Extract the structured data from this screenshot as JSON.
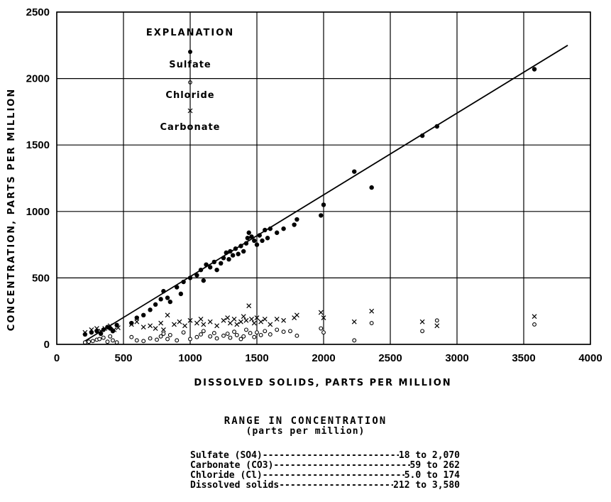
{
  "chart_data": {
    "type": "scatter",
    "xlabel": "DISSOLVED SOLIDS, PARTS PER MILLION",
    "ylabel": "CONCENTRATION, PARTS PER MILLION",
    "xlim": [
      0,
      4000
    ],
    "ylim": [
      0,
      2500
    ],
    "xticks": [
      0,
      500,
      1000,
      1500,
      2000,
      2500,
      3000,
      3500,
      4000
    ],
    "yticks": [
      0,
      500,
      1000,
      1500,
      2000,
      2500
    ],
    "grid": true,
    "legend": {
      "title": "EXPLANATION",
      "placement": "top-left",
      "entries": [
        {
          "label": "Sulfate",
          "marker": "filled-circle"
        },
        {
          "label": "Chloride",
          "marker": "open-circle"
        },
        {
          "label": "Carbonate",
          "marker": "x"
        }
      ]
    },
    "trend_line": {
      "series": "Sulfate",
      "x": [
        200,
        3830
      ],
      "y": [
        18,
        2250
      ]
    },
    "series": [
      {
        "name": "Sulfate",
        "marker": "filled-circle",
        "points": [
          [
            212,
            75
          ],
          [
            260,
            90
          ],
          [
            300,
            100
          ],
          [
            330,
            80
          ],
          [
            350,
            110
          ],
          [
            380,
            130
          ],
          [
            400,
            120
          ],
          [
            420,
            100
          ],
          [
            450,
            145
          ],
          [
            560,
            160
          ],
          [
            600,
            200
          ],
          [
            650,
            220
          ],
          [
            700,
            260
          ],
          [
            740,
            300
          ],
          [
            780,
            340
          ],
          [
            800,
            400
          ],
          [
            830,
            350
          ],
          [
            850,
            320
          ],
          [
            900,
            430
          ],
          [
            930,
            380
          ],
          [
            950,
            470
          ],
          [
            1000,
            500
          ],
          [
            1050,
            520
          ],
          [
            1080,
            560
          ],
          [
            1100,
            480
          ],
          [
            1120,
            600
          ],
          [
            1150,
            580
          ],
          [
            1180,
            620
          ],
          [
            1200,
            560
          ],
          [
            1230,
            610
          ],
          [
            1250,
            650
          ],
          [
            1270,
            690
          ],
          [
            1290,
            640
          ],
          [
            1300,
            700
          ],
          [
            1320,
            670
          ],
          [
            1340,
            720
          ],
          [
            1360,
            680
          ],
          [
            1380,
            740
          ],
          [
            1400,
            700
          ],
          [
            1420,
            760
          ],
          [
            1430,
            800
          ],
          [
            1440,
            840
          ],
          [
            1460,
            810
          ],
          [
            1480,
            780
          ],
          [
            1500,
            750
          ],
          [
            1520,
            820
          ],
          [
            1540,
            780
          ],
          [
            1560,
            860
          ],
          [
            1580,
            800
          ],
          [
            1600,
            870
          ],
          [
            1650,
            840
          ],
          [
            1700,
            870
          ],
          [
            1780,
            900
          ],
          [
            1800,
            940
          ],
          [
            1980,
            970
          ],
          [
            2000,
            1050
          ],
          [
            2230,
            1300
          ],
          [
            2360,
            1180
          ],
          [
            2740,
            1570
          ],
          [
            2850,
            1640
          ],
          [
            3580,
            2070
          ]
        ]
      },
      {
        "name": "Chloride",
        "marker": "open-circle",
        "points": [
          [
            212,
            15
          ],
          [
            240,
            20
          ],
          [
            270,
            25
          ],
          [
            300,
            35
          ],
          [
            320,
            40
          ],
          [
            350,
            50
          ],
          [
            380,
            20
          ],
          [
            400,
            60
          ],
          [
            420,
            30
          ],
          [
            450,
            15
          ],
          [
            560,
            55
          ],
          [
            600,
            30
          ],
          [
            650,
            25
          ],
          [
            700,
            45
          ],
          [
            750,
            35
          ],
          [
            780,
            60
          ],
          [
            800,
            80
          ],
          [
            830,
            40
          ],
          [
            850,
            70
          ],
          [
            900,
            30
          ],
          [
            950,
            90
          ],
          [
            1000,
            40
          ],
          [
            1050,
            55
          ],
          [
            1080,
            75
          ],
          [
            1100,
            100
          ],
          [
            1150,
            60
          ],
          [
            1180,
            85
          ],
          [
            1200,
            45
          ],
          [
            1250,
            65
          ],
          [
            1280,
            80
          ],
          [
            1300,
            50
          ],
          [
            1330,
            95
          ],
          [
            1350,
            70
          ],
          [
            1380,
            40
          ],
          [
            1400,
            60
          ],
          [
            1420,
            110
          ],
          [
            1450,
            85
          ],
          [
            1480,
            55
          ],
          [
            1500,
            90
          ],
          [
            1530,
            70
          ],
          [
            1560,
            100
          ],
          [
            1600,
            75
          ],
          [
            1650,
            110
          ],
          [
            1700,
            95
          ],
          [
            1750,
            100
          ],
          [
            1800,
            65
          ],
          [
            1980,
            120
          ],
          [
            2000,
            90
          ],
          [
            2230,
            30
          ],
          [
            2360,
            160
          ],
          [
            2740,
            100
          ],
          [
            2850,
            180
          ],
          [
            3580,
            150
          ]
        ]
      },
      {
        "name": "Carbonate",
        "marker": "x",
        "points": [
          [
            212,
            90
          ],
          [
            260,
            110
          ],
          [
            300,
            120
          ],
          [
            330,
            100
          ],
          [
            360,
            120
          ],
          [
            400,
            140
          ],
          [
            430,
            110
          ],
          [
            460,
            125
          ],
          [
            560,
            150
          ],
          [
            600,
            170
          ],
          [
            650,
            130
          ],
          [
            700,
            140
          ],
          [
            740,
            120
          ],
          [
            780,
            160
          ],
          [
            800,
            110
          ],
          [
            830,
            220
          ],
          [
            880,
            150
          ],
          [
            920,
            170
          ],
          [
            960,
            140
          ],
          [
            1000,
            180
          ],
          [
            1050,
            160
          ],
          [
            1080,
            190
          ],
          [
            1100,
            150
          ],
          [
            1150,
            170
          ],
          [
            1200,
            140
          ],
          [
            1250,
            180
          ],
          [
            1280,
            200
          ],
          [
            1300,
            160
          ],
          [
            1330,
            190
          ],
          [
            1350,
            150
          ],
          [
            1380,
            170
          ],
          [
            1400,
            210
          ],
          [
            1420,
            180
          ],
          [
            1440,
            290
          ],
          [
            1460,
            190
          ],
          [
            1480,
            160
          ],
          [
            1500,
            200
          ],
          [
            1530,
            170
          ],
          [
            1560,
            190
          ],
          [
            1600,
            150
          ],
          [
            1650,
            190
          ],
          [
            1700,
            180
          ],
          [
            1780,
            200
          ],
          [
            1800,
            220
          ],
          [
            1980,
            240
          ],
          [
            2000,
            200
          ],
          [
            2230,
            170
          ],
          [
            2360,
            250
          ],
          [
            2740,
            170
          ],
          [
            2850,
            140
          ],
          [
            3580,
            210
          ]
        ]
      }
    ]
  },
  "range_table": {
    "title": "RANGE IN CONCENTRATION",
    "subtitle": "(parts per million)",
    "rows": [
      {
        "label": "Sulfate (SO4)",
        "value": "18 to 2,070"
      },
      {
        "label": "Carbonate (CO3)",
        "value": "59 to 262"
      },
      {
        "label": "Chloride (Cl)",
        "value": "5.0 to 174"
      },
      {
        "label": "Dissolved solids",
        "value": "212 to 3,580"
      }
    ]
  }
}
